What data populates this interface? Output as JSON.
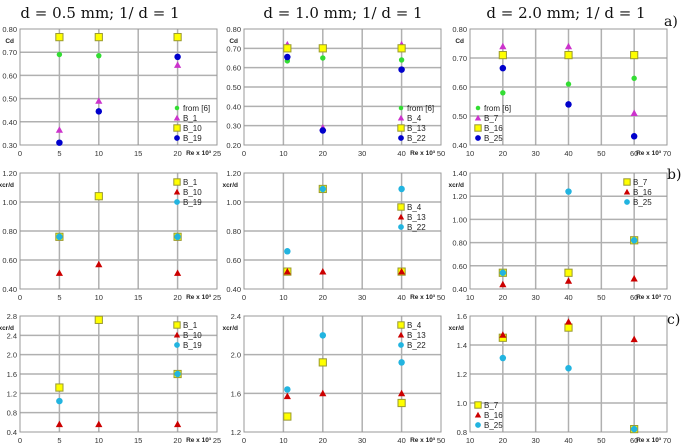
{
  "col_titles": [
    "d = 0.5 mm; 1/ d = 1",
    "d = 1.0 mm; 1/ d = 1",
    "d = 2.0 mm; 1/ d = 1"
  ],
  "row_labels": [
    "a)",
    "b)",
    "c)"
  ],
  "colors": {
    "from [6]": "#33dd33",
    "cd_triangle": "#cc33cc",
    "cd_square": "#ffff00",
    "cd_circle": "#0000cc",
    "triangle": "#cc0000",
    "square": "#ffff00",
    "circle": "#22b4e0"
  },
  "chart_data": [
    {
      "type": "scatter",
      "ylabel": "Cd",
      "xlabel": "Re x 10³",
      "xlim": [
        0,
        25
      ],
      "xticks": [
        0,
        5,
        10,
        15,
        20,
        25
      ],
      "ylim": [
        0.3,
        0.8
      ],
      "yticks": [
        0.3,
        0.4,
        0.5,
        0.6,
        0.7,
        0.8
      ],
      "grid": true,
      "legend": "bottom-right",
      "series": [
        {
          "name": "from [6]",
          "marker": "diamond",
          "x": [
            5,
            10
          ],
          "y": [
            0.69,
            0.685
          ]
        },
        {
          "name": "B_1",
          "marker": "triangle",
          "x": [
            5,
            10,
            20
          ],
          "y": [
            0.365,
            0.49,
            0.645
          ]
        },
        {
          "name": "B_10",
          "marker": "square",
          "x": [
            5,
            10,
            20
          ],
          "y": [
            0.765,
            0.765,
            0.765
          ]
        },
        {
          "name": "B_19",
          "marker": "circle",
          "x": [
            5,
            10,
            20
          ],
          "y": [
            0.31,
            0.445,
            0.68
          ]
        }
      ]
    },
    {
      "type": "scatter",
      "ylabel": "Cd",
      "xlabel": "Re x 10³",
      "xlim": [
        0,
        50
      ],
      "xticks": [
        0,
        10,
        20,
        30,
        40,
        50
      ],
      "ylim": [
        0.2,
        0.8
      ],
      "yticks": [
        0.2,
        0.3,
        0.4,
        0.5,
        0.6,
        0.7,
        0.8
      ],
      "grid": true,
      "legend": "bottom-right",
      "series": [
        {
          "name": "from [6]",
          "marker": "diamond",
          "x": [
            11,
            20,
            40
          ],
          "y": [
            0.635,
            0.65,
            0.64
          ]
        },
        {
          "name": "B_4",
          "marker": "triangle",
          "x": [
            11,
            20,
            40
          ],
          "y": [
            0.72,
            0.29,
            0.72
          ]
        },
        {
          "name": "B_13",
          "marker": "square",
          "x": [
            11,
            20,
            40
          ],
          "y": [
            0.7,
            0.7,
            0.7
          ]
        },
        {
          "name": "B_22",
          "marker": "circle",
          "x": [
            11,
            20,
            40
          ],
          "y": [
            0.655,
            0.275,
            0.59
          ]
        }
      ]
    },
    {
      "type": "scatter",
      "ylabel": "Cd",
      "xlabel": "Re x 10³",
      "xlim": [
        10,
        70
      ],
      "xticks": [
        10,
        20,
        30,
        40,
        50,
        60,
        70
      ],
      "ylim": [
        0.4,
        0.8
      ],
      "yticks": [
        0.4,
        0.5,
        0.6,
        0.7,
        0.8
      ],
      "grid": true,
      "legend": "bottom-left",
      "series": [
        {
          "name": "from [6]",
          "marker": "diamond",
          "x": [
            20,
            40,
            60
          ],
          "y": [
            0.58,
            0.61,
            0.63
          ]
        },
        {
          "name": "B_7",
          "marker": "triangle",
          "x": [
            20,
            40,
            60
          ],
          "y": [
            0.74,
            0.74,
            0.51
          ]
        },
        {
          "name": "B_16",
          "marker": "square",
          "x": [
            20,
            40,
            60
          ],
          "y": [
            0.71,
            0.71,
            0.71
          ]
        },
        {
          "name": "B_25",
          "marker": "circle",
          "x": [
            20,
            40,
            60
          ],
          "y": [
            0.665,
            0.54,
            0.43
          ]
        }
      ]
    },
    {
      "type": "scatter",
      "ylabel": "xcr/d",
      "xlabel": "Re x 10³",
      "xlim": [
        0,
        25
      ],
      "xticks": [
        0,
        5,
        10,
        15,
        20,
        25
      ],
      "ylim": [
        0.4,
        1.2
      ],
      "yticks": [
        0.4,
        0.6,
        0.8,
        1.0,
        1.2
      ],
      "grid": true,
      "legend": "top-right",
      "series": [
        {
          "name": "B_1",
          "marker": "square",
          "x": [
            5,
            10,
            20
          ],
          "y": [
            0.76,
            1.04,
            0.76
          ]
        },
        {
          "name": "B_10",
          "marker": "triangle",
          "x": [
            5,
            10,
            20
          ],
          "y": [
            0.51,
            0.57,
            0.51
          ]
        },
        {
          "name": "B_19",
          "marker": "circle",
          "x": [
            5,
            20
          ],
          "y": [
            0.76,
            0.76
          ]
        }
      ]
    },
    {
      "type": "scatter",
      "ylabel": "xcr/d",
      "xlabel": "Re x 10³",
      "xlim": [
        0,
        50
      ],
      "xticks": [
        0,
        10,
        20,
        30,
        40,
        50
      ],
      "ylim": [
        0.4,
        1.2
      ],
      "yticks": [
        0.4,
        0.6,
        0.8,
        1.0,
        1.2
      ],
      "grid": true,
      "legend": "right",
      "series": [
        {
          "name": "B_4",
          "marker": "square",
          "x": [
            11,
            20,
            40
          ],
          "y": [
            0.52,
            1.09,
            0.52
          ]
        },
        {
          "name": "B_13",
          "marker": "triangle",
          "x": [
            11,
            20,
            40
          ],
          "y": [
            0.52,
            0.52,
            0.52
          ]
        },
        {
          "name": "B_22",
          "marker": "circle",
          "x": [
            11,
            20,
            40
          ],
          "y": [
            0.66,
            1.09,
            1.09
          ]
        }
      ]
    },
    {
      "type": "scatter",
      "ylabel": "xcr/d",
      "xlabel": "Re x 10³",
      "xlim": [
        10,
        70
      ],
      "xticks": [
        10,
        20,
        30,
        40,
        50,
        60,
        70
      ],
      "ylim": [
        0.4,
        1.4
      ],
      "yticks": [
        0.4,
        0.6,
        0.8,
        1.0,
        1.2,
        1.4
      ],
      "grid": true,
      "legend": "top-right",
      "series": [
        {
          "name": "B_7",
          "marker": "square",
          "x": [
            20,
            40,
            60
          ],
          "y": [
            0.54,
            0.54,
            0.82
          ]
        },
        {
          "name": "B_16",
          "marker": "triangle",
          "x": [
            20,
            40,
            60
          ],
          "y": [
            0.44,
            0.47,
            0.49
          ]
        },
        {
          "name": "B_25",
          "marker": "circle",
          "x": [
            20,
            40,
            60
          ],
          "y": [
            0.54,
            1.24,
            0.82
          ]
        }
      ]
    },
    {
      "type": "scatter",
      "ylabel": "xcr/d",
      "xlabel": "Re x 10³",
      "xlim": [
        0,
        25
      ],
      "xticks": [
        0,
        5,
        10,
        15,
        20,
        25
      ],
      "ylim": [
        0.4,
        2.8
      ],
      "yticks": [
        0.4,
        0.8,
        1.2,
        1.6,
        2.0,
        2.4,
        2.8
      ],
      "grid": true,
      "legend": "top-right",
      "series": [
        {
          "name": "B_1",
          "marker": "square",
          "x": [
            5,
            10,
            20
          ],
          "y": [
            1.32,
            2.72,
            1.6
          ]
        },
        {
          "name": "B_10",
          "marker": "triangle",
          "x": [
            5,
            10,
            20
          ],
          "y": [
            0.56,
            0.56,
            0.56
          ]
        },
        {
          "name": "B_19",
          "marker": "circle",
          "x": [
            5,
            20
          ],
          "y": [
            1.04,
            1.6
          ]
        }
      ]
    },
    {
      "type": "scatter",
      "ylabel": "xcr/d",
      "xlabel": "Re x 10³",
      "xlim": [
        0,
        50
      ],
      "xticks": [
        0,
        10,
        20,
        30,
        40,
        50
      ],
      "ylim": [
        1.2,
        2.4
      ],
      "yticks": [
        1.2,
        1.6,
        2.0,
        2.4
      ],
      "grid": true,
      "legend": "top-right",
      "series": [
        {
          "name": "B_4",
          "marker": "square",
          "x": [
            11,
            20,
            40
          ],
          "y": [
            1.36,
            1.92,
            1.5
          ]
        },
        {
          "name": "B_13",
          "marker": "triangle",
          "x": [
            11,
            20,
            40
          ],
          "y": [
            1.57,
            1.6,
            1.6
          ]
        },
        {
          "name": "B_22",
          "marker": "circle",
          "x": [
            11,
            20,
            40
          ],
          "y": [
            1.64,
            2.2,
            1.92
          ]
        }
      ]
    },
    {
      "type": "scatter",
      "ylabel": "xcr/d",
      "xlabel": "Re x 10³",
      "xlim": [
        10,
        70
      ],
      "xticks": [
        10,
        20,
        30,
        40,
        50,
        60,
        70
      ],
      "ylim": [
        0.8,
        1.6
      ],
      "yticks": [
        0.8,
        1.0,
        1.2,
        1.4,
        1.6
      ],
      "grid": true,
      "legend": "bottom-left",
      "series": [
        {
          "name": "B_7",
          "marker": "square",
          "x": [
            20,
            40,
            60
          ],
          "y": [
            1.45,
            1.52,
            0.82
          ]
        },
        {
          "name": "B_16",
          "marker": "triangle",
          "x": [
            20,
            40,
            60
          ],
          "y": [
            1.47,
            1.56,
            1.44
          ]
        },
        {
          "name": "B_25",
          "marker": "circle",
          "x": [
            20,
            40,
            60
          ],
          "y": [
            1.31,
            1.24,
            0.82
          ]
        }
      ]
    }
  ]
}
